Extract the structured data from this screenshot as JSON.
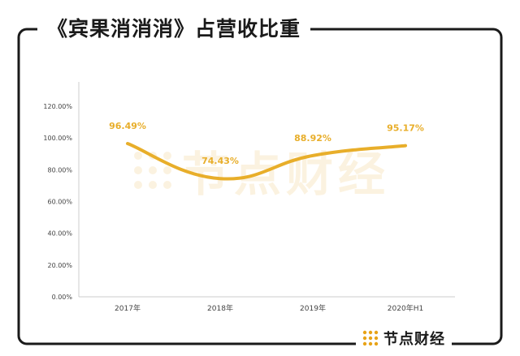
{
  "header": {
    "title": "《宾果消消消》占营收比重"
  },
  "watermark": {
    "text": "节点财经"
  },
  "brand": {
    "text": "节点财经"
  },
  "colors": {
    "line": "#E8AE2A",
    "label": "#E8AE2A",
    "axis": "#cccccc",
    "text": "#444444",
    "frame": "#1a1a1a",
    "logo_dot": "#E8A317"
  },
  "chart_data": {
    "type": "line",
    "categories": [
      "2017年",
      "2018年",
      "2019年",
      "2020年H1"
    ],
    "values": [
      96.49,
      74.43,
      88.92,
      95.17
    ],
    "data_labels": [
      "96.49%",
      "74.43%",
      "88.92%",
      "95.17%"
    ],
    "y_ticks": [
      "0.00%",
      "20.00%",
      "40.00%",
      "60.00%",
      "80.00%",
      "100.00%",
      "120.00%"
    ],
    "ylim": [
      0,
      120
    ],
    "smooth": true,
    "grid": false,
    "legend": "none"
  }
}
